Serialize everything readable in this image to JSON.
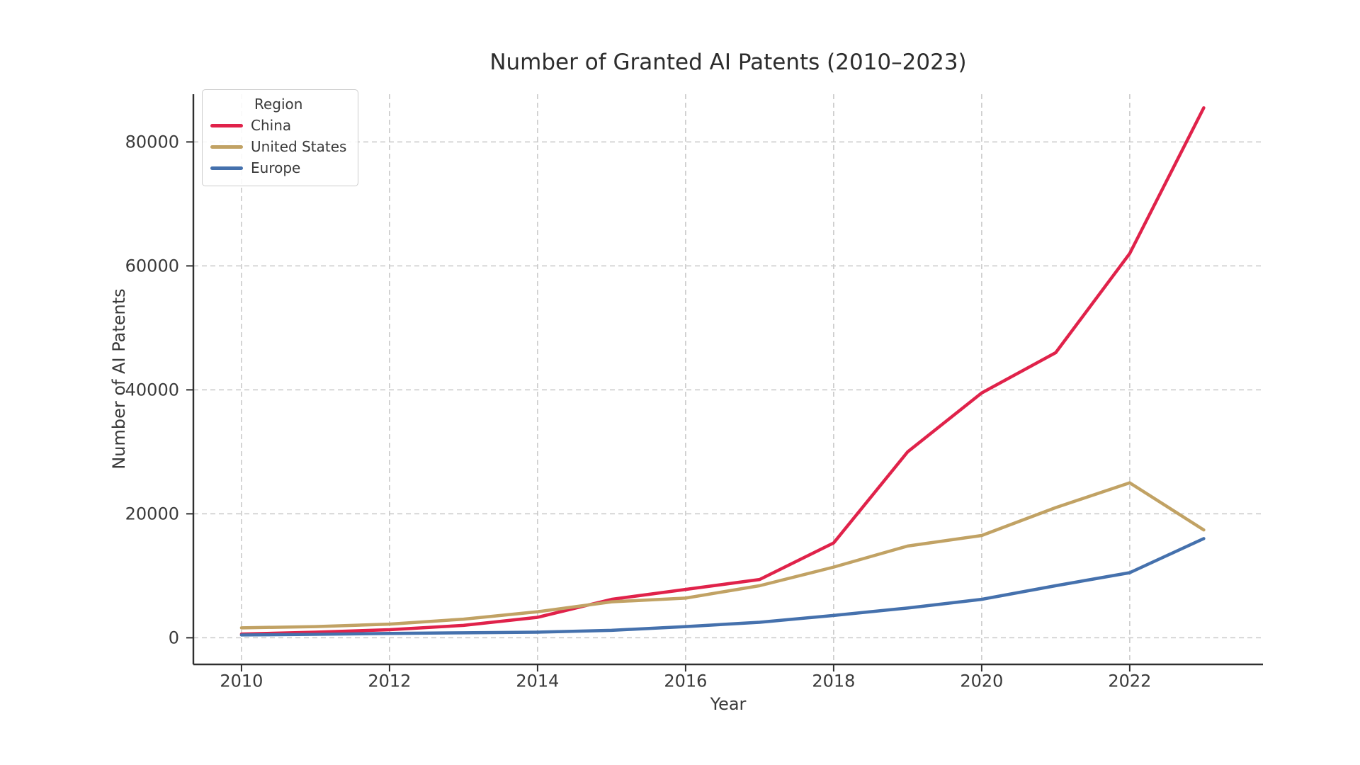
{
  "chart_data": {
    "type": "line",
    "title": "Number of Granted AI Patents (2010–2023)",
    "xlabel": "Year",
    "ylabel": "Number of AI Patents",
    "legend_title": "Region",
    "legend_position": "upper left",
    "grid": true,
    "grid_style": "dashed",
    "x": [
      2010,
      2011,
      2012,
      2013,
      2014,
      2015,
      2016,
      2017,
      2018,
      2019,
      2020,
      2021,
      2022,
      2023
    ],
    "series": [
      {
        "name": "China",
        "color": "#e0224a",
        "values": [
          600,
          900,
          1300,
          2000,
          3300,
          6200,
          7800,
          9400,
          15300,
          30000,
          39500,
          46000,
          62000,
          85500
        ]
      },
      {
        "name": "United States",
        "color": "#c1a264",
        "values": [
          1600,
          1800,
          2200,
          3000,
          4200,
          5800,
          6400,
          8400,
          11400,
          14800,
          16500,
          21000,
          25000,
          17400
        ]
      },
      {
        "name": "Europe",
        "color": "#4571ad",
        "values": [
          450,
          550,
          700,
          800,
          900,
          1200,
          1800,
          2500,
          3600,
          4800,
          6200,
          8400,
          10500,
          16000
        ]
      }
    ],
    "x_ticks": [
      2010,
      2012,
      2014,
      2016,
      2018,
      2020,
      2022
    ],
    "y_ticks": [
      0,
      20000,
      40000,
      60000,
      80000
    ],
    "xlim": [
      2009.35,
      2023.8
    ],
    "ylim": [
      -4300,
      87700
    ],
    "colors": {
      "grid": "#c9c9c9",
      "spine": "#2f2f2f",
      "tick_label": "#3a3a3a",
      "title_text": "#2d2d2d",
      "background": "#ffffff"
    }
  }
}
